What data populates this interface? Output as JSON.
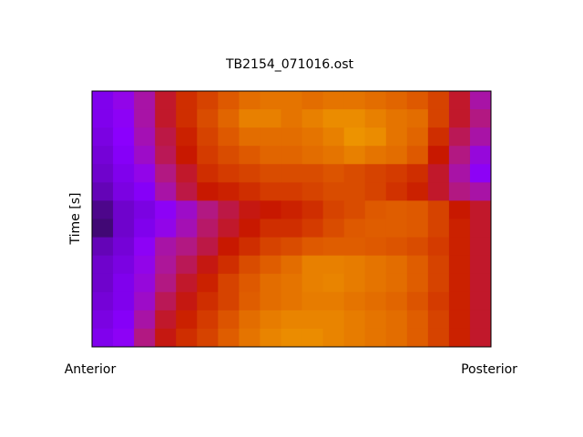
{
  "chart_data": {
    "type": "heatmap",
    "title": "TB2154_071016.ost",
    "y_label": "Time [s]",
    "x_start_label": "Anterior",
    "x_end_label": "Posterior",
    "colormap": [
      "#2a0a4a",
      "#8a00ff",
      "#b01890",
      "#c81800",
      "#e06000",
      "#f0a000",
      "#f8c800"
    ],
    "values": [
      [
        0.15,
        0.2,
        0.3,
        0.45,
        0.55,
        0.6,
        0.65,
        0.7,
        0.72,
        0.72,
        0.7,
        0.72,
        0.72,
        0.7,
        0.68,
        0.65,
        0.6,
        0.45,
        0.3
      ],
      [
        0.15,
        0.18,
        0.3,
        0.45,
        0.55,
        0.62,
        0.68,
        0.75,
        0.75,
        0.72,
        0.75,
        0.78,
        0.78,
        0.75,
        0.72,
        0.7,
        0.6,
        0.45,
        0.35
      ],
      [
        0.14,
        0.17,
        0.28,
        0.42,
        0.52,
        0.6,
        0.65,
        0.7,
        0.7,
        0.7,
        0.72,
        0.75,
        0.8,
        0.78,
        0.72,
        0.68,
        0.55,
        0.4,
        0.3
      ],
      [
        0.13,
        0.16,
        0.25,
        0.4,
        0.5,
        0.58,
        0.62,
        0.65,
        0.68,
        0.68,
        0.7,
        0.72,
        0.75,
        0.72,
        0.7,
        0.65,
        0.5,
        0.35,
        0.22
      ],
      [
        0.12,
        0.15,
        0.2,
        0.35,
        0.45,
        0.55,
        0.58,
        0.6,
        0.62,
        0.62,
        0.62,
        0.64,
        0.62,
        0.6,
        0.58,
        0.55,
        0.45,
        0.3,
        0.18
      ],
      [
        0.1,
        0.14,
        0.16,
        0.3,
        0.42,
        0.5,
        0.52,
        0.55,
        0.58,
        0.58,
        0.6,
        0.62,
        0.62,
        0.6,
        0.56,
        0.52,
        0.45,
        0.35,
        0.3
      ],
      [
        0.06,
        0.12,
        0.14,
        0.18,
        0.25,
        0.35,
        0.42,
        0.48,
        0.5,
        0.52,
        0.55,
        0.6,
        0.62,
        0.65,
        0.66,
        0.65,
        0.6,
        0.5,
        0.45
      ],
      [
        0.04,
        0.12,
        0.15,
        0.2,
        0.28,
        0.38,
        0.45,
        0.5,
        0.55,
        0.55,
        0.58,
        0.62,
        0.65,
        0.66,
        0.66,
        0.65,
        0.6,
        0.52,
        0.45
      ],
      [
        0.1,
        0.13,
        0.18,
        0.3,
        0.35,
        0.42,
        0.5,
        0.55,
        0.6,
        0.62,
        0.65,
        0.66,
        0.66,
        0.65,
        0.64,
        0.62,
        0.58,
        0.52,
        0.45
      ],
      [
        0.12,
        0.14,
        0.2,
        0.32,
        0.4,
        0.48,
        0.55,
        0.62,
        0.66,
        0.7,
        0.75,
        0.75,
        0.74,
        0.72,
        0.7,
        0.66,
        0.6,
        0.52,
        0.45
      ],
      [
        0.12,
        0.15,
        0.22,
        0.35,
        0.45,
        0.52,
        0.6,
        0.65,
        0.7,
        0.72,
        0.75,
        0.76,
        0.74,
        0.72,
        0.7,
        0.66,
        0.6,
        0.52,
        0.45
      ],
      [
        0.13,
        0.15,
        0.25,
        0.4,
        0.48,
        0.55,
        0.6,
        0.66,
        0.7,
        0.72,
        0.74,
        0.74,
        0.72,
        0.7,
        0.68,
        0.64,
        0.58,
        0.52,
        0.45
      ],
      [
        0.14,
        0.16,
        0.3,
        0.45,
        0.52,
        0.58,
        0.64,
        0.7,
        0.74,
        0.76,
        0.76,
        0.76,
        0.74,
        0.72,
        0.7,
        0.66,
        0.6,
        0.52,
        0.45
      ],
      [
        0.15,
        0.18,
        0.35,
        0.48,
        0.55,
        0.6,
        0.66,
        0.72,
        0.76,
        0.78,
        0.78,
        0.76,
        0.74,
        0.72,
        0.7,
        0.66,
        0.6,
        0.52,
        0.45
      ]
    ]
  }
}
